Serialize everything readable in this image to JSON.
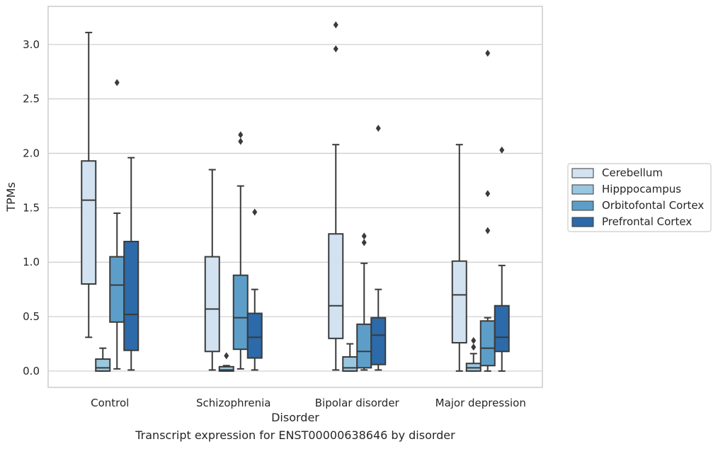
{
  "caption": "Transcript expression for ENST00000638646 by disorder",
  "chart_data": {
    "type": "box",
    "xlabel": "Disorder",
    "ylabel": "TPMs",
    "ylim": [
      -0.15,
      3.35
    ],
    "yticks": [
      "0.0",
      "0.5",
      "1.0",
      "1.5",
      "2.0",
      "2.5",
      "3.0"
    ],
    "grid": "horizontal",
    "legend_position": "right",
    "categories": [
      "Control",
      "Schizophrenia",
      "Bipolar disorder",
      "Major depression"
    ],
    "series": [
      {
        "name": "Cerebellum",
        "color": "#d2e2f1",
        "boxes": [
          {
            "min": 0.31,
            "q1": 0.8,
            "median": 1.57,
            "q3": 1.93,
            "max": 3.11,
            "outliers": []
          },
          {
            "min": 0.01,
            "q1": 0.18,
            "median": 0.57,
            "q3": 1.05,
            "max": 1.85,
            "outliers": []
          },
          {
            "min": 0.01,
            "q1": 0.3,
            "median": 0.6,
            "q3": 1.26,
            "max": 2.08,
            "outliers": [
              2.96,
              3.18
            ]
          },
          {
            "min": 0.0,
            "q1": 0.26,
            "median": 0.7,
            "q3": 1.01,
            "max": 2.08,
            "outliers": []
          }
        ]
      },
      {
        "name": "Hipppocampus",
        "color": "#9ac7e0",
        "boxes": [
          {
            "min": 0.0,
            "q1": 0.0,
            "median": 0.03,
            "q3": 0.11,
            "max": 0.21,
            "outliers": []
          },
          {
            "min": 0.0,
            "q1": 0.0,
            "median": 0.01,
            "q3": 0.04,
            "max": 0.05,
            "outliers": [
              0.14
            ]
          },
          {
            "min": 0.0,
            "q1": 0.0,
            "median": 0.03,
            "q3": 0.13,
            "max": 0.25,
            "outliers": []
          },
          {
            "min": 0.0,
            "q1": 0.0,
            "median": 0.03,
            "q3": 0.07,
            "max": 0.16,
            "outliers": [
              0.22,
              0.28
            ]
          }
        ]
      },
      {
        "name": "Orbitofontal Cortex",
        "color": "#5d9ec9",
        "boxes": [
          {
            "min": 0.02,
            "q1": 0.45,
            "median": 0.79,
            "q3": 1.05,
            "max": 1.45,
            "outliers": [
              2.65
            ]
          },
          {
            "min": 0.02,
            "q1": 0.2,
            "median": 0.49,
            "q3": 0.88,
            "max": 1.7,
            "outliers": [
              2.11,
              2.17
            ]
          },
          {
            "min": 0.01,
            "q1": 0.03,
            "median": 0.18,
            "q3": 0.43,
            "max": 0.99,
            "outliers": [
              1.18,
              1.24
            ]
          },
          {
            "min": 0.0,
            "q1": 0.05,
            "median": 0.21,
            "q3": 0.46,
            "max": 0.49,
            "outliers": [
              1.29,
              1.63,
              2.92
            ]
          }
        ]
      },
      {
        "name": "Prefrontal Cortex",
        "color": "#2c6aa9",
        "boxes": [
          {
            "min": 0.01,
            "q1": 0.19,
            "median": 0.52,
            "q3": 1.19,
            "max": 1.96,
            "outliers": []
          },
          {
            "min": 0.01,
            "q1": 0.12,
            "median": 0.31,
            "q3": 0.53,
            "max": 0.75,
            "outliers": [
              1.46
            ]
          },
          {
            "min": 0.01,
            "q1": 0.06,
            "median": 0.33,
            "q3": 0.49,
            "max": 0.75,
            "outliers": [
              2.23
            ]
          },
          {
            "min": 0.0,
            "q1": 0.18,
            "median": 0.31,
            "q3": 0.6,
            "max": 0.97,
            "outliers": [
              2.03
            ]
          }
        ]
      }
    ]
  }
}
